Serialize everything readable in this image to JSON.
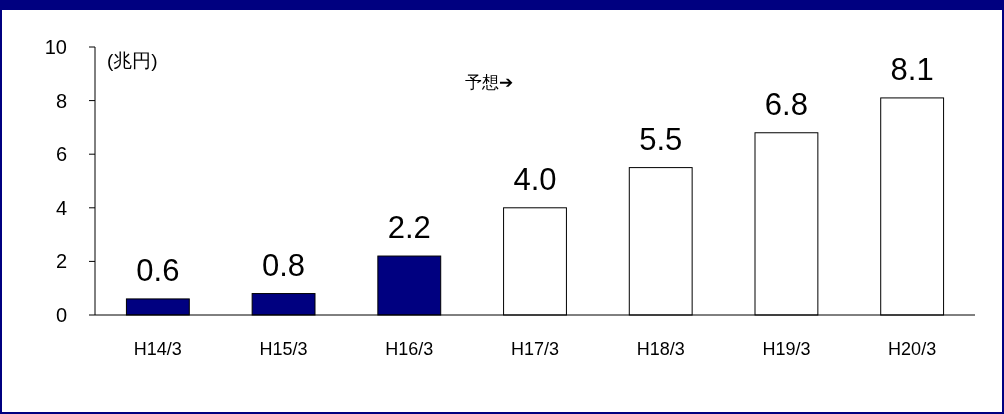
{
  "chart_data": {
    "type": "bar",
    "ylabel": "(兆円)",
    "annotations": [
      "予想➔"
    ],
    "categories": [
      "H14/3",
      "H15/3",
      "H16/3",
      "H17/3",
      "H18/3",
      "H19/3",
      "H20/3"
    ],
    "values": [
      0.6,
      0.8,
      2.2,
      4.0,
      5.5,
      6.8,
      8.1
    ],
    "value_labels": [
      "0.6",
      "0.8",
      "2.2",
      "4.0",
      "5.5",
      "6.8",
      "8.1"
    ],
    "colors": [
      "#000080",
      "#000080",
      "#000080",
      "#ffffff",
      "#ffffff",
      "#ffffff",
      "#ffffff"
    ],
    "ylim": [
      0,
      10
    ],
    "yticks": [
      0,
      2,
      4,
      6,
      8,
      10
    ]
  }
}
